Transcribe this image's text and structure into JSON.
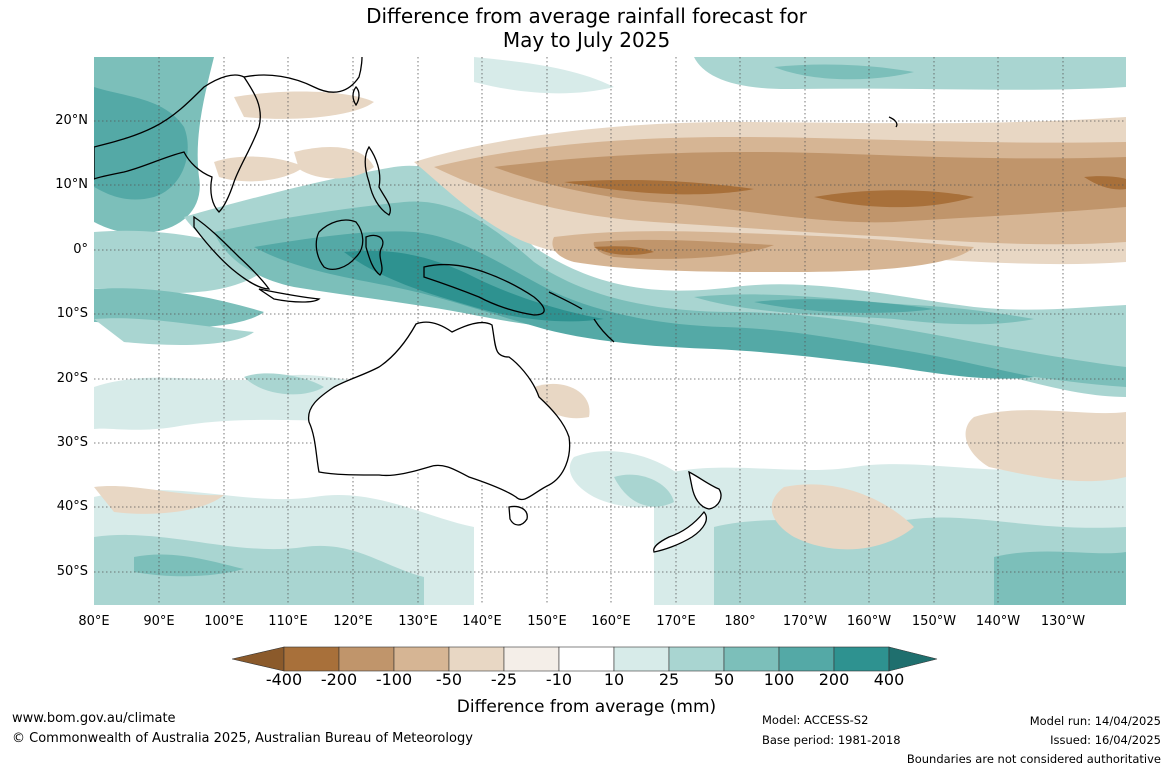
{
  "title_line1": "Difference from average rainfall forecast for",
  "title_line2": "May to July 2025",
  "latitude_labels": [
    "20°N",
    "10°N",
    "0°",
    "10°S",
    "20°S",
    "30°S",
    "40°S",
    "50°S"
  ],
  "longitude_labels": [
    "80°E",
    "90°E",
    "100°E",
    "110°E",
    "120°E",
    "130°E",
    "140°E",
    "150°E",
    "160°E",
    "170°E",
    "180°",
    "170°W",
    "160°W",
    "150°W",
    "140°W",
    "130°W"
  ],
  "colorbar": {
    "ticks": [
      "-400",
      "-200",
      "-100",
      "-50",
      "-25",
      "-10",
      "10",
      "25",
      "50",
      "100",
      "200",
      "400"
    ],
    "colors": [
      "#8b5a2b",
      "#a8703a",
      "#c0956b",
      "#d6b594",
      "#e8d7c4",
      "#f4eee8",
      "#ffffff",
      "#d7ebe9",
      "#a9d5d1",
      "#7cbfba",
      "#54a9a6",
      "#2e9290",
      "#1f6f6e"
    ],
    "title": "Difference from average (mm)"
  },
  "footer": {
    "website": "www.bom.gov.au/climate",
    "copyright": "© Commonwealth of Australia 2025, Australian Bureau of Meteorology",
    "model": "Model: ACCESS-S2",
    "base_period": "Base period: 1981-2018",
    "model_run": "Model run: 14/04/2025",
    "issued": "Issued: 16/04/2025",
    "disclaimer": "Boundaries are not considered authoritative"
  }
}
